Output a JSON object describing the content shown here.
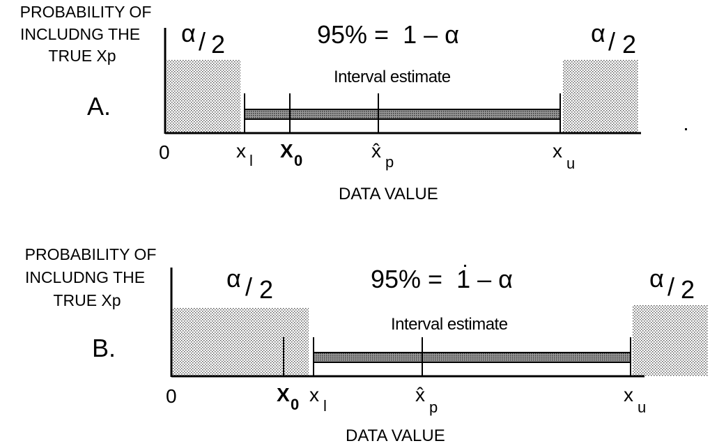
{
  "y_axis_label": [
    "PROBABILITY OF",
    "INCLUDNG THE",
    "TRUE Xp"
  ],
  "x_axis_label": "DATA VALUE",
  "alpha_half": "α/2",
  "confidence_label": "95% =  1 – α",
  "interval_label": "Interval estimate",
  "tick_labels": {
    "zero": "0",
    "x_lower": "x",
    "x_lower_sub": "l",
    "x_zero": "X",
    "x_zero_sub": "0",
    "x_p_hat": "x̂",
    "x_p_sub": "p",
    "x_upper": "x",
    "x_upper_sub": "u"
  },
  "panels": [
    {
      "letter": "A."
    },
    {
      "letter": "B."
    }
  ]
}
